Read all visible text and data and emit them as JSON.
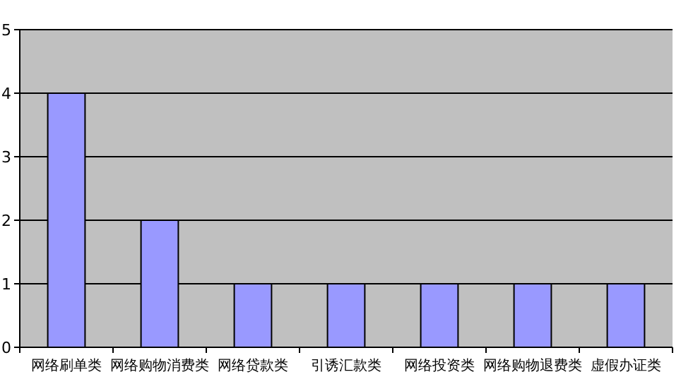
{
  "chart_data": {
    "type": "bar",
    "categories": [
      "网络刷单类",
      "网络购物消费类",
      "网络贷款类",
      "引诱汇款类",
      "网络投资类",
      "网络购物退费类",
      "虚假办证类"
    ],
    "values": [
      4,
      2,
      1,
      1,
      1,
      1,
      1
    ],
    "color": "#9999ff",
    "ylim": [
      0,
      5
    ],
    "yticks": [
      0,
      1,
      2,
      3,
      4,
      5
    ],
    "grid": "y"
  }
}
